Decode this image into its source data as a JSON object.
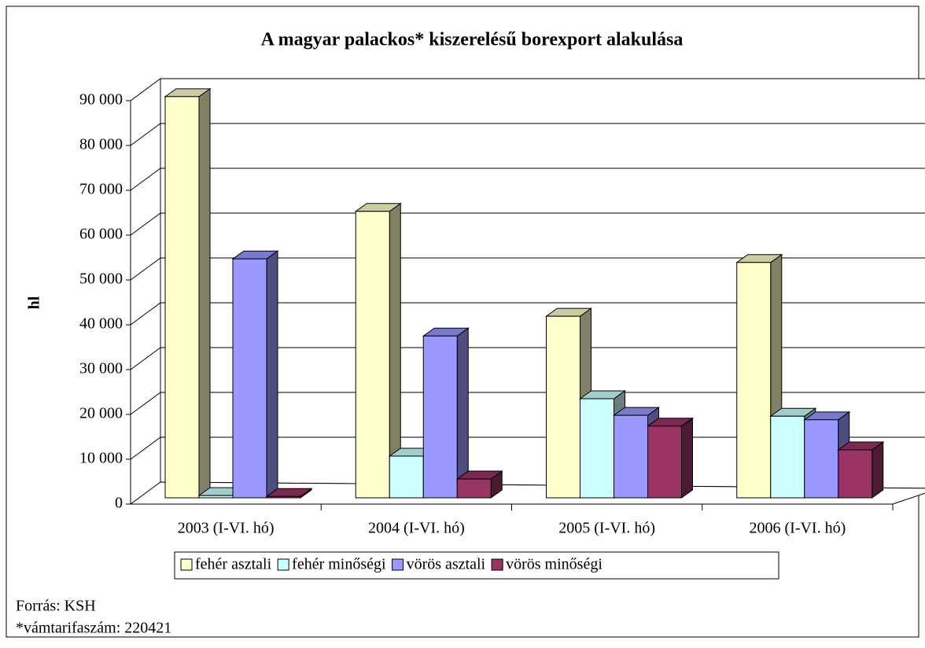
{
  "chart_data": {
    "type": "bar3d",
    "title": "A magyar palackos* kiszerelésű  borexport alakulása",
    "ylabel": "hl",
    "categories": [
      "2003 (I-VI. hó)",
      "2004 (I-VI. hó)",
      "2005 (I-VI. hó)",
      "2006 (I-VI. hó)"
    ],
    "series": [
      {
        "name": "fehér asztali",
        "color": "#ffffcc",
        "values": [
          89500,
          63900,
          40500,
          52500
        ]
      },
      {
        "name": "fehér minőségi",
        "color": "#ccffff",
        "values": [
          500,
          9300,
          22100,
          18200
        ]
      },
      {
        "name": "vörös asztali",
        "color": "#9999ff",
        "values": [
          53300,
          36100,
          18400,
          17400
        ]
      },
      {
        "name": "vörös minőségi",
        "color": "#993366",
        "values": [
          300,
          4200,
          16000,
          10700
        ]
      }
    ],
    "ylim": [
      0,
      90000
    ],
    "yticks": [
      0,
      {
        "value": 10000,
        "label": "10 000"
      },
      {
        "value": 20000,
        "label": "20 000"
      },
      {
        "value": 30000,
        "label": "30 000"
      },
      {
        "value": 40000,
        "label": "40 000"
      },
      {
        "value": 50000,
        "label": "50 000"
      },
      {
        "value": 60000,
        "label": "60 000"
      },
      {
        "value": 70000,
        "label": "70 000"
      },
      {
        "value": 80000,
        "label": "80 000"
      },
      {
        "value": 90000,
        "label": "90 000"
      }
    ],
    "grid": true,
    "legend": "bottom",
    "notes": [
      "Forrás: KSH",
      "*vámtarifaszám: 220421"
    ]
  }
}
